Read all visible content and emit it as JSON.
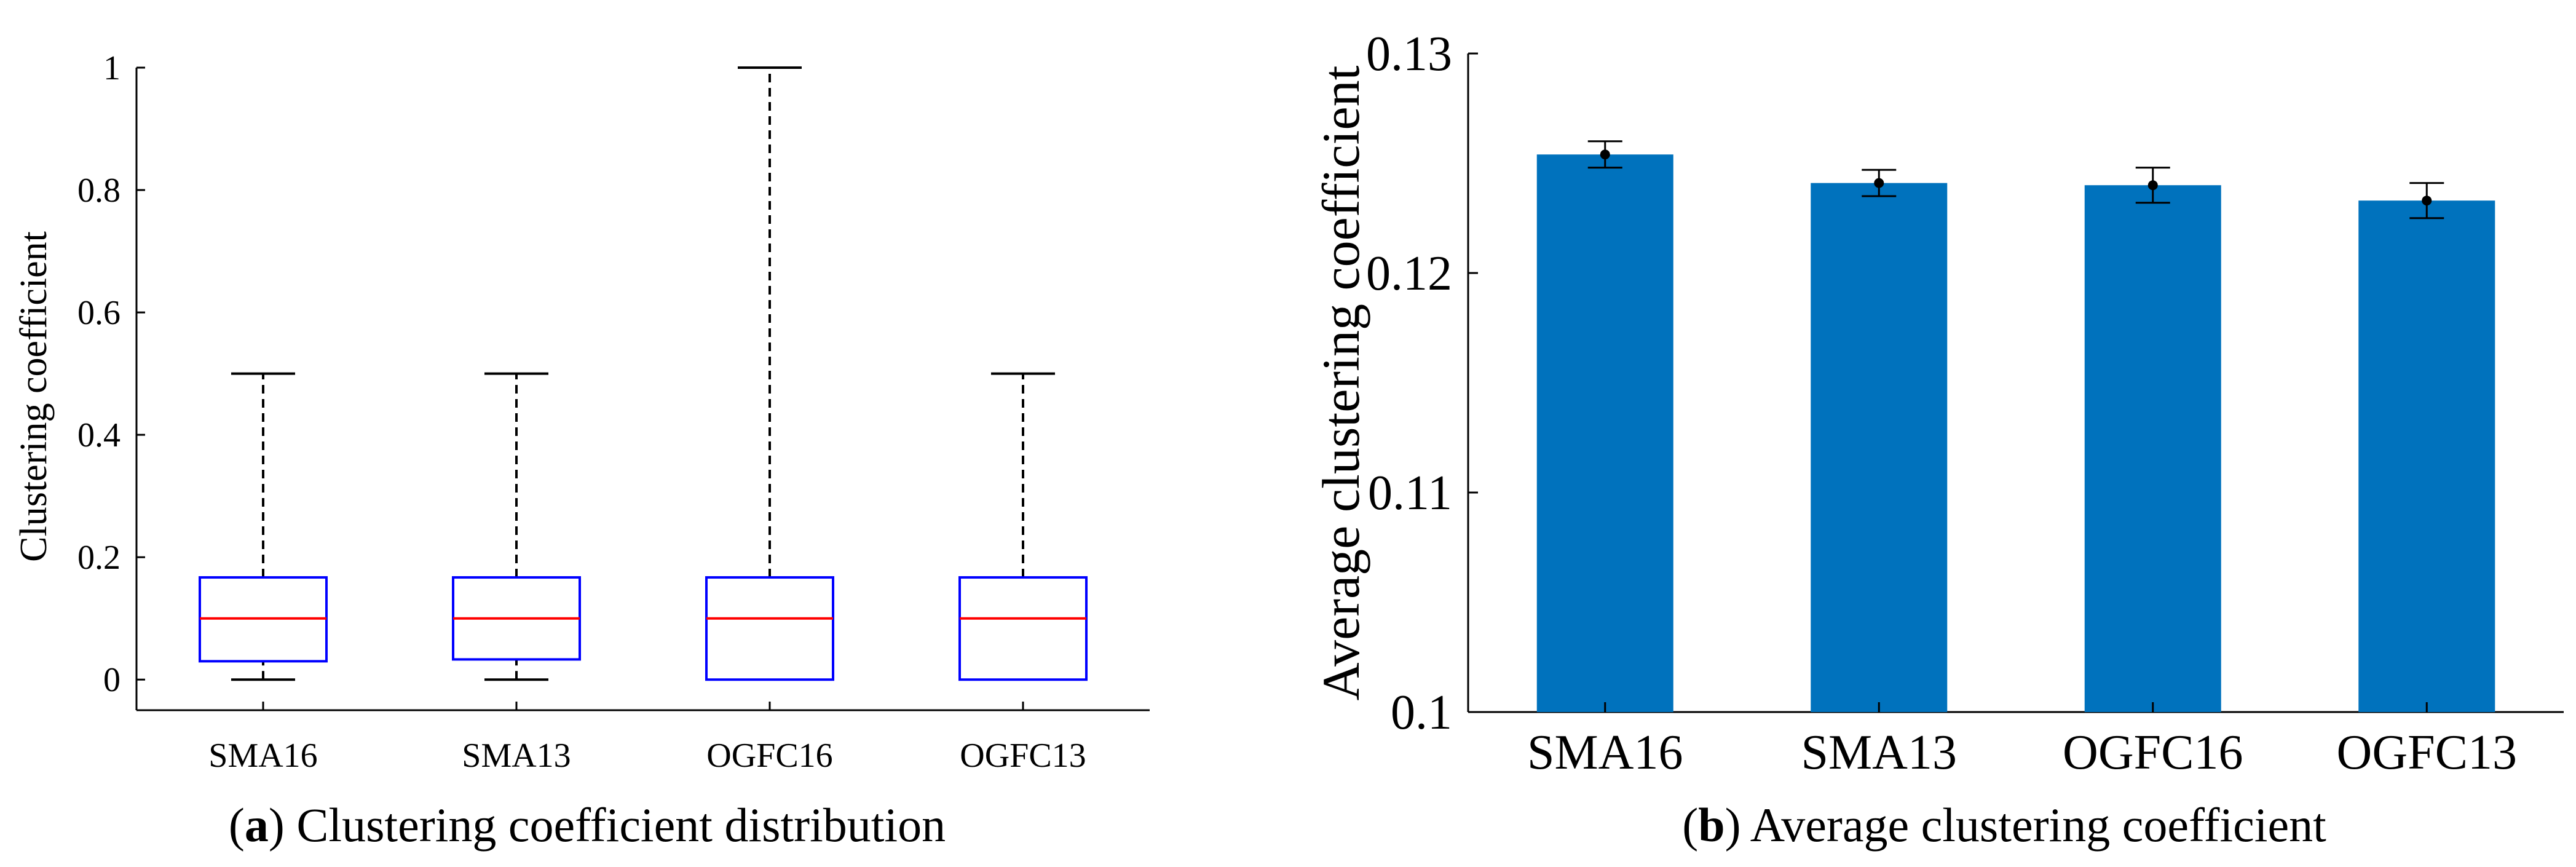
{
  "colors": {
    "box_edge": "#0000ff",
    "median": "#ff0000",
    "bar_fill": "#0072bd",
    "axis": "#000000"
  },
  "chart_data": [
    {
      "id": "a",
      "type": "box",
      "caption_letter": "a",
      "caption": "Clustering coefficient distribution",
      "ylabel": "Clustering coefficient",
      "xlabel": "",
      "ylim": [
        -0.05,
        1.0
      ],
      "yticks": [
        0,
        0.2,
        0.4,
        0.6,
        0.8,
        1
      ],
      "ytick_labels": [
        "0",
        "0.2",
        "0.4",
        "0.6",
        "0.8",
        "1"
      ],
      "categories": [
        "SMA16",
        "SMA13",
        "OGFC16",
        "OGFC13"
      ],
      "boxes": [
        {
          "name": "SMA16",
          "whisker_low": 0,
          "q1": 0.03,
          "median": 0.1,
          "q3": 0.167,
          "whisker_high": 0.5
        },
        {
          "name": "SMA13",
          "whisker_low": 0,
          "q1": 0.033,
          "median": 0.1,
          "q3": 0.167,
          "whisker_high": 0.5
        },
        {
          "name": "OGFC16",
          "whisker_low": 0,
          "q1": 0,
          "median": 0.1,
          "q3": 0.167,
          "whisker_high": 1.0
        },
        {
          "name": "OGFC13",
          "whisker_low": 0,
          "q1": 0,
          "median": 0.1,
          "q3": 0.167,
          "whisker_high": 0.5
        }
      ]
    },
    {
      "id": "b",
      "type": "bar",
      "caption_letter": "b",
      "caption": "Average clustering coefficient",
      "ylabel": "Average clustering coefficient",
      "xlabel": "",
      "ylim": [
        0.1,
        0.13
      ],
      "yticks": [
        0.1,
        0.11,
        0.12,
        0.13
      ],
      "ytick_labels": [
        "0.1",
        "0.11",
        "0.12",
        "0.13"
      ],
      "categories": [
        "SMA16",
        "SMA13",
        "OGFC16",
        "OGFC13"
      ],
      "values": [
        0.1254,
        0.1241,
        0.124,
        0.1233
      ],
      "error": [
        0.0006,
        0.0006,
        0.0008,
        0.0008
      ]
    }
  ]
}
